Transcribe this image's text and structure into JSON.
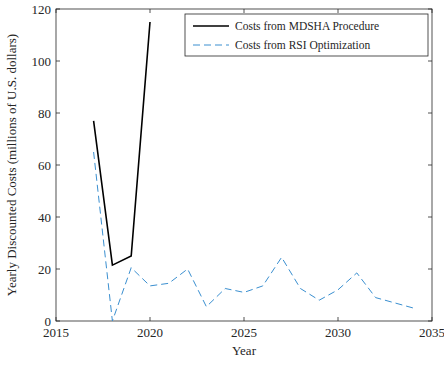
{
  "chart_data": {
    "type": "line",
    "x_label": "Year",
    "y_label": "Yearly Discounted Costs (millions of U.S. dollars)",
    "xlim": [
      2015,
      2035
    ],
    "xticks": [
      2015,
      2020,
      2025,
      2030,
      2035
    ],
    "ylim": [
      0,
      120
    ],
    "yticks": [
      0,
      20,
      40,
      60,
      80,
      100,
      120
    ],
    "grid": false,
    "legend": "top-right",
    "series": [
      {
        "name": "Costs from MDSHA Procedure",
        "color": "#000000",
        "line_style": "solid",
        "x": [
          2017,
          2018,
          2019,
          2020
        ],
        "values": [
          77,
          21.5,
          25,
          115
        ]
      },
      {
        "name": "Costs from RSI Optimization",
        "color": "#3a8fd0",
        "line_style": "dashed",
        "x": [
          2017,
          2018,
          2019,
          2020,
          2021,
          2022,
          2023,
          2024,
          2025,
          2026,
          2027,
          2028,
          2029,
          2030,
          2031,
          2032,
          2033,
          2034
        ],
        "values": [
          65,
          0,
          20.5,
          13.5,
          14.5,
          20,
          5.5,
          12.5,
          11,
          13.5,
          24.5,
          12.5,
          8,
          12,
          18.5,
          9,
          7,
          5
        ]
      }
    ]
  }
}
